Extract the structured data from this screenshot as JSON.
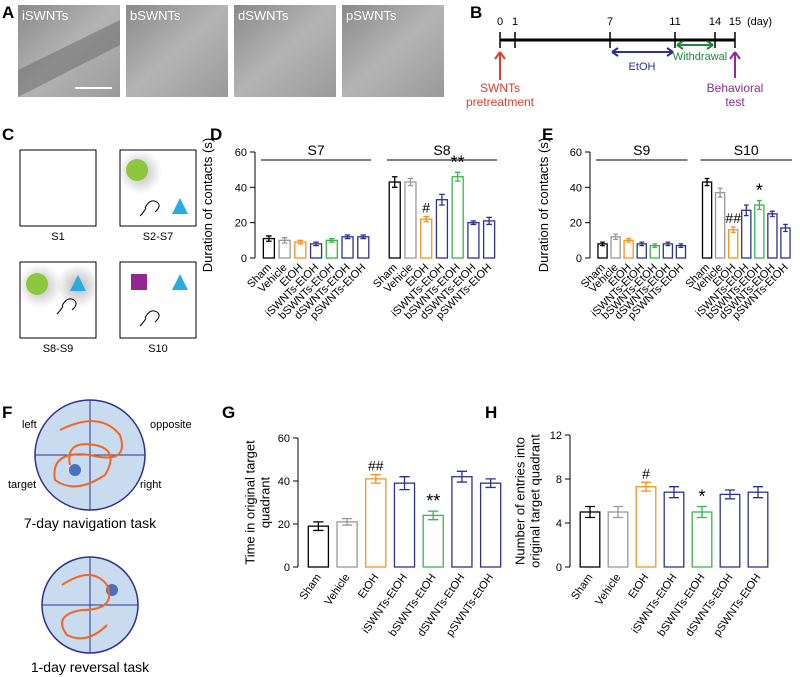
{
  "panels": {
    "A": {
      "letter": "A",
      "images": [
        "iSWNTs",
        "bSWNTs",
        "dSWNTs",
        "pSWNTs"
      ]
    },
    "B": {
      "letter": "B",
      "days": [
        "0",
        "1",
        "7",
        "11",
        "14",
        "15"
      ],
      "unit": "(day)",
      "etoh": "EtOH",
      "withdrawal": "Withdrawal",
      "pre": [
        "SWNTs",
        "pretreatment"
      ],
      "test": [
        "Behavioral",
        "test"
      ]
    },
    "C": {
      "letter": "C",
      "boxes": [
        "S1",
        "S2-S7",
        "S8-S9",
        "S10"
      ]
    },
    "F": {
      "letter": "F",
      "quadrants": [
        "left",
        "opposite",
        "target",
        "right"
      ],
      "tasks": [
        "7-day navigation task",
        "1-day reversal task"
      ]
    }
  },
  "chart_data": [
    {
      "type": "bar",
      "panel": "D",
      "ylabel": [
        "Duration of contacts (s)"
      ],
      "ylim": [
        0,
        60
      ],
      "yticks": [
        0,
        20,
        40,
        60
      ],
      "categories": [
        "Sham",
        "Vehicle",
        "EtOH",
        "iSWNTs-EtOH",
        "bSWNTs-EtOH",
        "dSWNTs-EtOH",
        "pSWNTs-EtOH"
      ],
      "colors": [
        "#000000",
        "#999999",
        "#f7931e",
        "#2e3192",
        "#39b54a",
        "#2e3192",
        "#2e3192"
      ],
      "series": [
        {
          "name": "S7",
          "values": [
            11,
            10,
            9,
            8,
            10,
            12,
            12
          ],
          "errors": [
            1.5,
            1.5,
            1,
            1,
            1,
            1,
            1
          ]
        },
        {
          "name": "S8",
          "values": [
            43,
            43,
            22,
            33,
            46,
            20,
            21
          ],
          "errors": [
            3,
            2,
            1.5,
            3,
            2.5,
            1,
            2
          ]
        }
      ],
      "annotations": [
        {
          "text": "#",
          "series": "S8",
          "category": "EtOH"
        },
        {
          "text": "**",
          "series": "S8",
          "category": "bSWNTs-EtOH"
        }
      ]
    },
    {
      "type": "bar",
      "panel": "E",
      "ylabel": [
        "Duration of contacts (s)"
      ],
      "ylim": [
        0,
        60
      ],
      "yticks": [
        0,
        20,
        40,
        60
      ],
      "categories": [
        "Sham",
        "Vehicle",
        "EtOH",
        "iSWNTs-EtOH",
        "bSWNTs-EtOH",
        "dSWNTs-EtOH",
        "pSWNTs-EtOH"
      ],
      "colors": [
        "#000000",
        "#999999",
        "#f7931e",
        "#2e3192",
        "#39b54a",
        "#2e3192",
        "#2e3192"
      ],
      "series": [
        {
          "name": "S9",
          "values": [
            8,
            12,
            10,
            8,
            7,
            8,
            7
          ],
          "errors": [
            1,
            1.5,
            1,
            1,
            1,
            1,
            1
          ]
        },
        {
          "name": "S10",
          "values": [
            43,
            37,
            16,
            27,
            30,
            25,
            17
          ],
          "errors": [
            2,
            2.5,
            1.5,
            3,
            2.5,
            1.5,
            2
          ]
        }
      ],
      "annotations": [
        {
          "text": "##",
          "series": "S10",
          "category": "EtOH"
        },
        {
          "text": "*",
          "series": "S10",
          "category": "bSWNTs-EtOH"
        }
      ]
    },
    {
      "type": "bar",
      "panel": "G",
      "ylabel": [
        "Time in original target",
        "quadrant"
      ],
      "ylim": [
        0,
        60
      ],
      "yticks": [
        0,
        20,
        40,
        60
      ],
      "categories": [
        "Sham",
        "Vehicle",
        "EtOH",
        "iSWNTs-EtOH",
        "bSWNTs-EtOH",
        "dSWNTs-EtOH",
        "pSWNTs-EtOH"
      ],
      "colors": [
        "#000000",
        "#999999",
        "#f7931e",
        "#2e3192",
        "#39b54a",
        "#2e3192",
        "#2e3192"
      ],
      "values": [
        19,
        21,
        41,
        39,
        24,
        42,
        39
      ],
      "errors": [
        2,
        1.5,
        2,
        3,
        2,
        2.5,
        2
      ],
      "annotations": [
        {
          "text": "##",
          "category": "EtOH"
        },
        {
          "text": "**",
          "category": "bSWNTs-EtOH"
        }
      ]
    },
    {
      "type": "bar",
      "panel": "H",
      "ylabel": [
        "Number of entries into",
        "original target quadrant"
      ],
      "ylim": [
        0,
        12
      ],
      "yticks": [
        0,
        4,
        8,
        12
      ],
      "categories": [
        "Sham",
        "Vehicle",
        "EtOH",
        "iSWNTs-EtOH",
        "bSWNTs-EtOH",
        "dSWNTs-EtOH",
        "pSWNTs-EtOH"
      ],
      "colors": [
        "#000000",
        "#999999",
        "#f7931e",
        "#2e3192",
        "#39b54a",
        "#2e3192",
        "#2e3192"
      ],
      "values": [
        5,
        5,
        7.3,
        6.8,
        5,
        6.6,
        6.8
      ],
      "errors": [
        0.5,
        0.5,
        0.4,
        0.5,
        0.5,
        0.4,
        0.5
      ],
      "annotations": [
        {
          "text": "#",
          "category": "EtOH"
        },
        {
          "text": "*",
          "category": "bSWNTs-EtOH"
        }
      ]
    }
  ]
}
